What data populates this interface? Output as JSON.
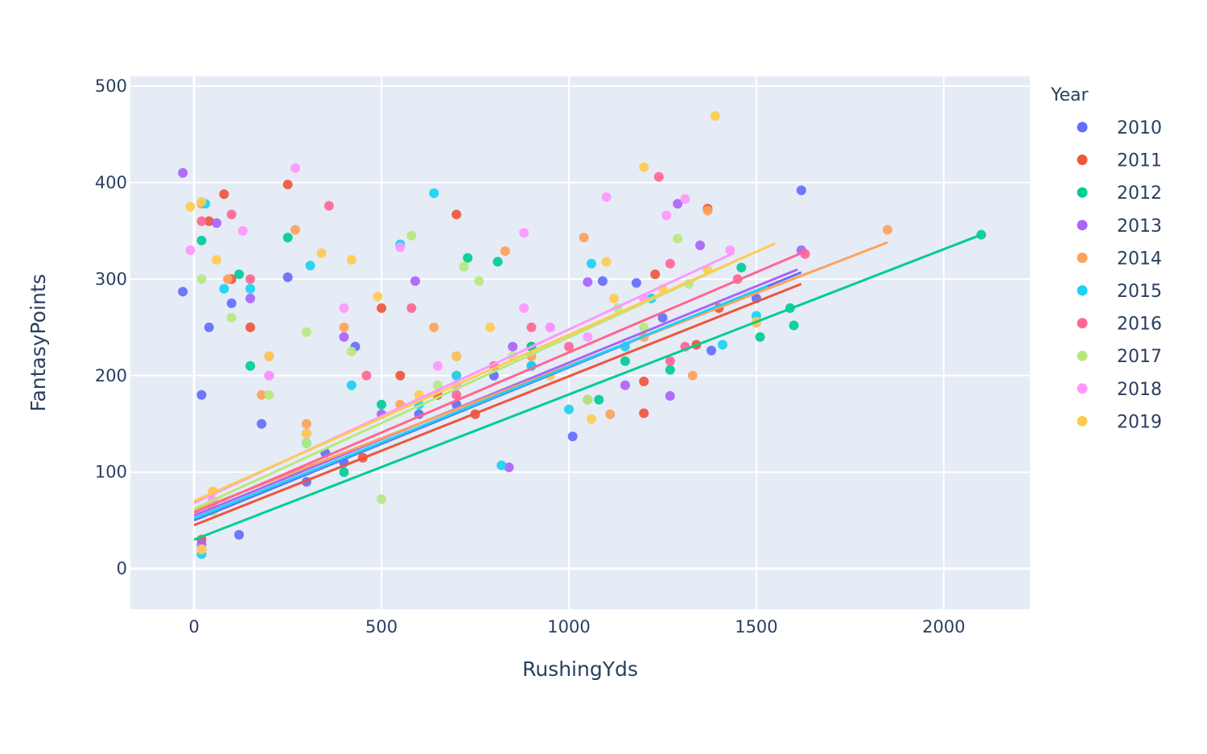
{
  "chart_data": {
    "type": "scatter",
    "title": "",
    "xlabel": "RushingYds",
    "ylabel": "FantasyPoints",
    "xlim": [
      -170,
      2230
    ],
    "ylim": [
      -42,
      510
    ],
    "xticks": [
      0,
      500,
      1000,
      1500,
      2000
    ],
    "yticks": [
      0,
      100,
      200,
      300,
      400,
      500
    ],
    "grid": true,
    "legend": {
      "title": "Year",
      "position": "right"
    },
    "series": [
      {
        "name": "2010",
        "color": "#636efa",
        "points": [
          [
            1620,
            392
          ],
          [
            1380,
            226
          ],
          [
            1010,
            137
          ],
          [
            1180,
            296
          ],
          [
            1090,
            298
          ],
          [
            250,
            302
          ],
          [
            100,
            275
          ],
          [
            430,
            230
          ],
          [
            -30,
            287
          ],
          [
            40,
            250
          ],
          [
            20,
            180
          ],
          [
            180,
            150
          ],
          [
            600,
            160
          ],
          [
            800,
            200
          ],
          [
            350,
            120
          ],
          [
            50,
            60
          ],
          [
            300,
            90
          ],
          [
            900,
            210
          ],
          [
            1500,
            280
          ],
          [
            20,
            20
          ],
          [
            120,
            35
          ],
          [
            700,
            170
          ],
          [
            400,
            110
          ],
          [
            1250,
            260
          ]
        ],
        "trend": [
          [
            0,
            50
          ],
          [
            1620,
            307
          ]
        ]
      },
      {
        "name": "2011",
        "color": "#EF553B",
        "points": [
          [
            1370,
            373
          ],
          [
            700,
            367
          ],
          [
            250,
            398
          ],
          [
            80,
            388
          ],
          [
            1230,
            305
          ],
          [
            1200,
            194
          ],
          [
            1200,
            161
          ],
          [
            1340,
            232
          ],
          [
            500,
            270
          ],
          [
            40,
            360
          ],
          [
            100,
            300
          ],
          [
            150,
            250
          ],
          [
            550,
            200
          ],
          [
            650,
            180
          ],
          [
            300,
            140
          ],
          [
            50,
            70
          ],
          [
            900,
            230
          ],
          [
            1050,
            175
          ],
          [
            20,
            30
          ],
          [
            450,
            115
          ],
          [
            750,
            160
          ],
          [
            1400,
            270
          ]
        ],
        "trend": [
          [
            0,
            45
          ],
          [
            1620,
            295
          ]
        ]
      },
      {
        "name": "2012",
        "color": "#00cc96",
        "points": [
          [
            2100,
            346
          ],
          [
            1600,
            252
          ],
          [
            1590,
            270
          ],
          [
            1510,
            240
          ],
          [
            1270,
            206
          ],
          [
            810,
            318
          ],
          [
            730,
            322
          ],
          [
            20,
            340
          ],
          [
            250,
            343
          ],
          [
            120,
            305
          ],
          [
            1460,
            312
          ],
          [
            900,
            230
          ],
          [
            500,
            170
          ],
          [
            300,
            130
          ],
          [
            50,
            60
          ],
          [
            700,
            190
          ],
          [
            1080,
            175
          ],
          [
            150,
            210
          ],
          [
            20,
            20
          ],
          [
            400,
            100
          ],
          [
            1150,
            215
          ]
        ],
        "trend": [
          [
            0,
            30
          ],
          [
            2100,
            346
          ]
        ]
      },
      {
        "name": "2013",
        "color": "#ab63fa",
        "points": [
          [
            1290,
            378
          ],
          [
            1620,
            330
          ],
          [
            1270,
            179
          ],
          [
            840,
            105
          ],
          [
            1050,
            297
          ],
          [
            590,
            298
          ],
          [
            60,
            358
          ],
          [
            -30,
            410
          ],
          [
            150,
            280
          ],
          [
            400,
            240
          ],
          [
            700,
            220
          ],
          [
            950,
            250
          ],
          [
            1150,
            190
          ],
          [
            300,
            140
          ],
          [
            50,
            70
          ],
          [
            500,
            160
          ],
          [
            20,
            25
          ],
          [
            1350,
            335
          ],
          [
            850,
            230
          ],
          [
            200,
            200
          ]
        ],
        "trend": [
          [
            0,
            55
          ],
          [
            1610,
            310
          ]
        ]
      },
      {
        "name": "2014",
        "color": "#FFA15A",
        "points": [
          [
            1850,
            351
          ],
          [
            1370,
            371
          ],
          [
            1040,
            343
          ],
          [
            1110,
            160
          ],
          [
            1330,
            200
          ],
          [
            830,
            329
          ],
          [
            270,
            351
          ],
          [
            20,
            378
          ],
          [
            90,
            300
          ],
          [
            400,
            250
          ],
          [
            640,
            250
          ],
          [
            700,
            200
          ],
          [
            1500,
            255
          ],
          [
            900,
            220
          ],
          [
            300,
            150
          ],
          [
            50,
            80
          ],
          [
            550,
            170
          ],
          [
            20,
            20
          ],
          [
            1200,
            240
          ],
          [
            180,
            180
          ]
        ],
        "trend": [
          [
            0,
            60
          ],
          [
            1850,
            338
          ]
        ]
      },
      {
        "name": "2015",
        "color": "#19d3f3",
        "points": [
          [
            640,
            389
          ],
          [
            1060,
            316
          ],
          [
            1410,
            232
          ],
          [
            1220,
            280
          ],
          [
            820,
            107
          ],
          [
            550,
            336
          ],
          [
            310,
            314
          ],
          [
            30,
            378
          ],
          [
            80,
            290
          ],
          [
            150,
            290
          ],
          [
            420,
            190
          ],
          [
            700,
            200
          ],
          [
            1000,
            165
          ],
          [
            1500,
            262
          ],
          [
            300,
            130
          ],
          [
            50,
            60
          ],
          [
            900,
            210
          ],
          [
            20,
            15
          ],
          [
            600,
            170
          ],
          [
            1150,
            230
          ]
        ],
        "trend": [
          [
            0,
            52
          ],
          [
            1530,
            293
          ]
        ]
      },
      {
        "name": "2016",
        "color": "#FF6692",
        "points": [
          [
            1240,
            406
          ],
          [
            1630,
            326
          ],
          [
            1270,
            316
          ],
          [
            1310,
            230
          ],
          [
            1270,
            215
          ],
          [
            360,
            376
          ],
          [
            100,
            367
          ],
          [
            20,
            360
          ],
          [
            150,
            300
          ],
          [
            580,
            270
          ],
          [
            460,
            200
          ],
          [
            800,
            210
          ],
          [
            1000,
            230
          ],
          [
            300,
            140
          ],
          [
            50,
            70
          ],
          [
            700,
            180
          ],
          [
            20,
            20
          ],
          [
            1450,
            300
          ],
          [
            900,
            250
          ],
          [
            200,
            220
          ]
        ],
        "trend": [
          [
            0,
            58
          ],
          [
            1620,
            327
          ]
        ]
      },
      {
        "name": "2017",
        "color": "#B6E880",
        "points": [
          [
            1290,
            342
          ],
          [
            760,
            298
          ],
          [
            580,
            345
          ],
          [
            720,
            313
          ],
          [
            1130,
            270
          ],
          [
            1320,
            295
          ],
          [
            300,
            245
          ],
          [
            20,
            300
          ],
          [
            100,
            260
          ],
          [
            420,
            225
          ],
          [
            650,
            190
          ],
          [
            500,
            72
          ],
          [
            950,
            200
          ],
          [
            1050,
            175
          ],
          [
            300,
            130
          ],
          [
            50,
            60
          ],
          [
            850,
            220
          ],
          [
            20,
            20
          ],
          [
            1200,
            250
          ],
          [
            200,
            180
          ]
        ],
        "trend": [
          [
            0,
            62
          ],
          [
            1480,
            325
          ]
        ]
      },
      {
        "name": "2018",
        "color": "#FF97FF",
        "points": [
          [
            1100,
            385
          ],
          [
            1310,
            383
          ],
          [
            880,
            348
          ],
          [
            270,
            415
          ],
          [
            -10,
            330
          ],
          [
            1430,
            330
          ],
          [
            1260,
            366
          ],
          [
            550,
            333
          ],
          [
            130,
            350
          ],
          [
            400,
            270
          ],
          [
            650,
            210
          ],
          [
            880,
            270
          ],
          [
            1050,
            240
          ],
          [
            300,
            140
          ],
          [
            50,
            70
          ],
          [
            700,
            190
          ],
          [
            20,
            20
          ],
          [
            1200,
            280
          ],
          [
            200,
            200
          ],
          [
            950,
            250
          ]
        ],
        "trend": [
          [
            0,
            68
          ],
          [
            1440,
            327
          ]
        ]
      },
      {
        "name": "2019",
        "color": "#FECB52",
        "points": [
          [
            1390,
            469
          ],
          [
            1200,
            416
          ],
          [
            1370,
            310
          ],
          [
            1100,
            318
          ],
          [
            1500,
            256
          ],
          [
            790,
            250
          ],
          [
            490,
            282
          ],
          [
            20,
            380
          ],
          [
            -10,
            375
          ],
          [
            60,
            320
          ],
          [
            340,
            327
          ],
          [
            420,
            320
          ],
          [
            700,
            220
          ],
          [
            950,
            200
          ],
          [
            1060,
            155
          ],
          [
            1120,
            280
          ],
          [
            300,
            140
          ],
          [
            50,
            80
          ],
          [
            600,
            180
          ],
          [
            20,
            20
          ],
          [
            1250,
            290
          ],
          [
            200,
            220
          ]
        ],
        "trend": [
          [
            0,
            70
          ],
          [
            1550,
            337
          ]
        ]
      }
    ]
  }
}
